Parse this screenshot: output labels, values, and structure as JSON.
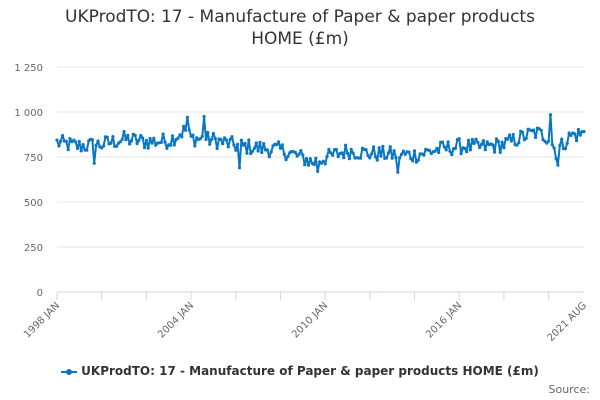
{
  "chart_data": {
    "type": "line",
    "title_line1": "UKProdTO: 17 - Manufacture of Paper & paper products",
    "title_line2": "HOME (£m)",
    "xlabel": "",
    "ylabel": "",
    "ylim": [
      0,
      1250
    ],
    "y_ticks": [
      "0",
      "250",
      "500",
      "750",
      "1 000",
      "1 250"
    ],
    "y_tick_values": [
      0,
      250,
      500,
      750,
      1000,
      1250
    ],
    "x_range": [
      "1998-01",
      "2021-08"
    ],
    "x_tick_labels": [
      "1998 JAN",
      "2004 JAN",
      "2010 JAN",
      "2016 JAN",
      "2021 AUG"
    ],
    "x_tick_dates": [
      "1998-01",
      "2004-01",
      "2010-01",
      "2016-01",
      "2021-08"
    ],
    "grid": true,
    "legend_position": "bottom",
    "series": [
      {
        "name": "UKProdTO: 17 - Manufacture of Paper & paper products HOME (£m)",
        "color": "#0a77c2",
        "anchors": [
          [
            "1998-01",
            830
          ],
          [
            "1999-01",
            810
          ],
          [
            "2000-01",
            820
          ],
          [
            "2001-01",
            850
          ],
          [
            "2002-01",
            835
          ],
          [
            "2003-01",
            840
          ],
          [
            "2003-10",
            900
          ],
          [
            "2004-01",
            855
          ],
          [
            "2005-01",
            845
          ],
          [
            "2006-01",
            815
          ],
          [
            "2007-01",
            800
          ],
          [
            "2008-01",
            790
          ],
          [
            "2009-01",
            745
          ],
          [
            "2009-06",
            720
          ],
          [
            "2010-01",
            745
          ],
          [
            "2011-01",
            785
          ],
          [
            "2012-01",
            770
          ],
          [
            "2013-01",
            765
          ],
          [
            "2014-01",
            760
          ],
          [
            "2015-01",
            790
          ],
          [
            "2016-01",
            810
          ],
          [
            "2017-01",
            805
          ],
          [
            "2018-01",
            820
          ],
          [
            "2019-01",
            870
          ],
          [
            "2019-06",
            885
          ],
          [
            "2020-01",
            860
          ],
          [
            "2020-05",
            780
          ],
          [
            "2021-01",
            870
          ],
          [
            "2021-08",
            880
          ]
        ],
        "noise_amplitude": 55,
        "peaks": [
          [
            "2003-11",
            970
          ],
          [
            "2004-08",
            975
          ],
          [
            "2020-02",
            985
          ],
          [
            "2020-06",
            705
          ],
          [
            "2006-03",
            690
          ],
          [
            "2009-09",
            670
          ],
          [
            "2013-04",
            665
          ],
          [
            "1999-09",
            715
          ]
        ]
      }
    ]
  },
  "legend": {
    "label": "UKProdTO: 17 - Manufacture of Paper & paper products HOME (£m)"
  },
  "credits": {
    "text": "Source:"
  }
}
